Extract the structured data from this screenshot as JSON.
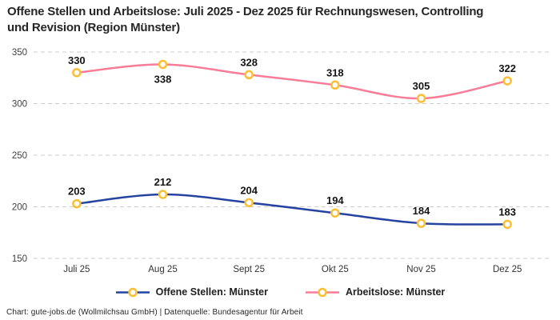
{
  "title": "Offene Stellen und Arbeitslose: Juli 2025 - Dez 2025 für Rechnungswesen, Controlling und Revision (Region Münster)",
  "chart_data": {
    "type": "line",
    "categories": [
      "Juli 25",
      "Aug 25",
      "Sept 25",
      "Okt 25",
      "Nov 25",
      "Dez 25"
    ],
    "series": [
      {
        "name": "Offene Stellen: Münster",
        "values": [
          203,
          212,
          204,
          194,
          184,
          183
        ],
        "color": "#2743A0",
        "label_below_indices": []
      },
      {
        "name": "Arbeitslose: Münster",
        "values": [
          330,
          338,
          328,
          318,
          305,
          322
        ],
        "color": "#F97C98",
        "label_below_indices": [
          1
        ]
      }
    ],
    "marker": {
      "fill": "#FFFFFF",
      "stroke": "#FBBE35"
    },
    "ylim": [
      150,
      350
    ],
    "yticks": [
      150,
      200,
      250,
      300,
      350
    ],
    "grid": "horizontal-dashed",
    "gridline_color": "#CCCCCC",
    "legend_position": "bottom"
  },
  "footer": {
    "text": "Chart: gute-jobs.de (Wollmilchsau GmbH) | Datenquelle: Bundesagentur für Arbeit"
  }
}
